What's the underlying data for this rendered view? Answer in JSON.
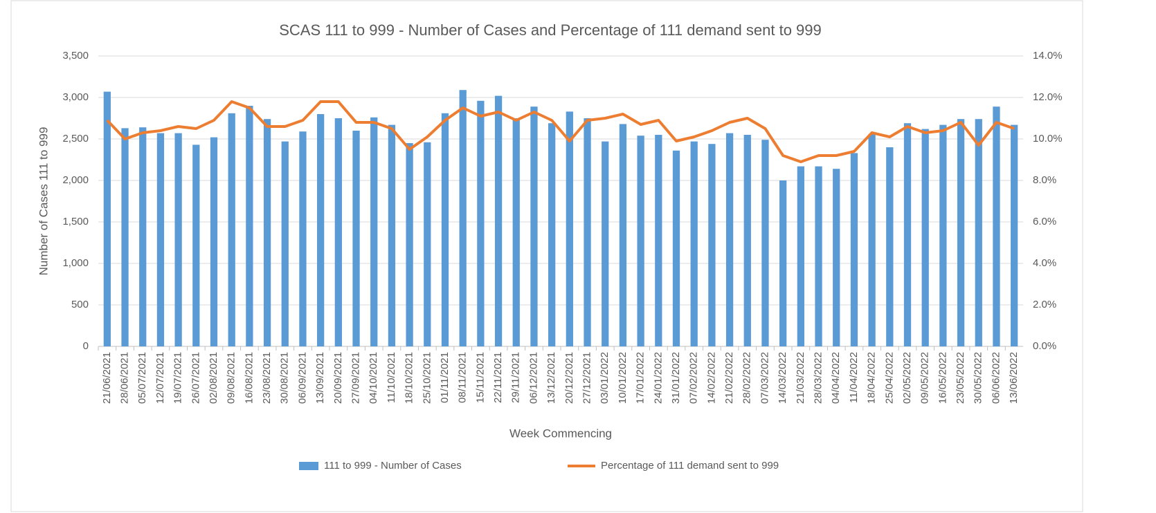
{
  "chart_data": {
    "type": "bar-line",
    "title": "SCAS 111 to 999 - Number of Cases and Percentage of 111 demand sent to 999",
    "x_label": "Week Commencing",
    "y_label": "Number of Cases 111 to 999",
    "categories": [
      "21/06/2021",
      "28/06/2021",
      "05/07/2021",
      "12/07/2021",
      "19/07/2021",
      "26/07/2021",
      "02/08/2021",
      "09/08/2021",
      "16/08/2021",
      "23/08/2021",
      "30/08/2021",
      "06/09/2021",
      "13/09/2021",
      "20/09/2021",
      "27/09/2021",
      "04/10/2021",
      "11/10/2021",
      "18/10/2021",
      "25/10/2021",
      "01/11/2021",
      "08/11/2021",
      "15/11/2021",
      "22/11/2021",
      "29/11/2021",
      "06/12/2021",
      "13/12/2021",
      "20/12/2021",
      "27/12/2021",
      "03/01/2022",
      "10/01/2022",
      "17/01/2022",
      "24/01/2022",
      "31/01/2022",
      "07/02/2022",
      "14/02/2022",
      "21/02/2022",
      "28/02/2022",
      "07/03/2022",
      "14/03/2022",
      "21/03/2022",
      "28/03/2022",
      "04/04/2022",
      "11/04/2022",
      "18/04/2022",
      "25/04/2022",
      "02/05/2022",
      "09/05/2022",
      "16/05/2022",
      "23/05/2022",
      "30/05/2022",
      "06/06/2022",
      "13/06/2022"
    ],
    "series": [
      {
        "name": "111 to 999 - Number of Cases",
        "color": "#5b9bd5",
        "kind": "bar",
        "values": [
          3070,
          2630,
          2640,
          2570,
          2570,
          2430,
          2520,
          2810,
          2900,
          2740,
          2470,
          2590,
          2800,
          2750,
          2600,
          2760,
          2670,
          2450,
          2460,
          2810,
          3090,
          2960,
          3020,
          2750,
          2890,
          2690,
          2830,
          2750,
          2470,
          2680,
          2540,
          2550,
          2360,
          2470,
          2440,
          2570,
          2550,
          2490,
          2000,
          2170,
          2170,
          2140,
          2330,
          2560,
          2400,
          2690,
          2620,
          2670,
          2740,
          2740,
          2890,
          2670
        ]
      },
      {
        "name": "Percentage of 111 demand sent to 999",
        "color": "#ed7d31",
        "kind": "line",
        "axis": "y2",
        "values": [
          10.9,
          10.0,
          10.3,
          10.4,
          10.6,
          10.5,
          10.9,
          11.8,
          11.5,
          10.6,
          10.6,
          10.9,
          11.8,
          11.8,
          10.8,
          10.8,
          10.5,
          9.5,
          10.1,
          10.9,
          11.5,
          11.1,
          11.3,
          10.9,
          11.3,
          10.9,
          9.9,
          10.9,
          11.0,
          11.2,
          10.7,
          10.9,
          9.9,
          10.1,
          10.4,
          10.8,
          11.0,
          10.5,
          9.2,
          8.9,
          9.2,
          9.2,
          9.4,
          10.3,
          10.1,
          10.6,
          10.3,
          10.4,
          10.8,
          9.7,
          10.8,
          10.5
        ]
      }
    ],
    "ylim": [
      0,
      3500
    ],
    "yticks": [
      0,
      500,
      {
        "value": 1000,
        "label": "1,000"
      },
      {
        "value": 1500,
        "label": "1,500"
      },
      {
        "value": 2000,
        "label": "2,000"
      },
      {
        "value": 2500,
        "label": "2,500"
      },
      {
        "value": 3000,
        "label": "3,000"
      },
      {
        "value": 3500,
        "label": "3,500"
      }
    ],
    "y2lim": [
      0,
      14
    ],
    "y2ticks": [
      {
        "value": 0,
        "label": "0.0%"
      },
      {
        "value": 2,
        "label": "2.0%"
      },
      {
        "value": 4,
        "label": "4.0%"
      },
      {
        "value": 6,
        "label": "6.0%"
      },
      {
        "value": 8,
        "label": "8.0%"
      },
      {
        "value": 10,
        "label": "10.0%"
      },
      {
        "value": 12,
        "label": "12.0%"
      },
      {
        "value": 14,
        "label": "14.0%"
      }
    ],
    "grid": true,
    "legend": "bottom"
  }
}
